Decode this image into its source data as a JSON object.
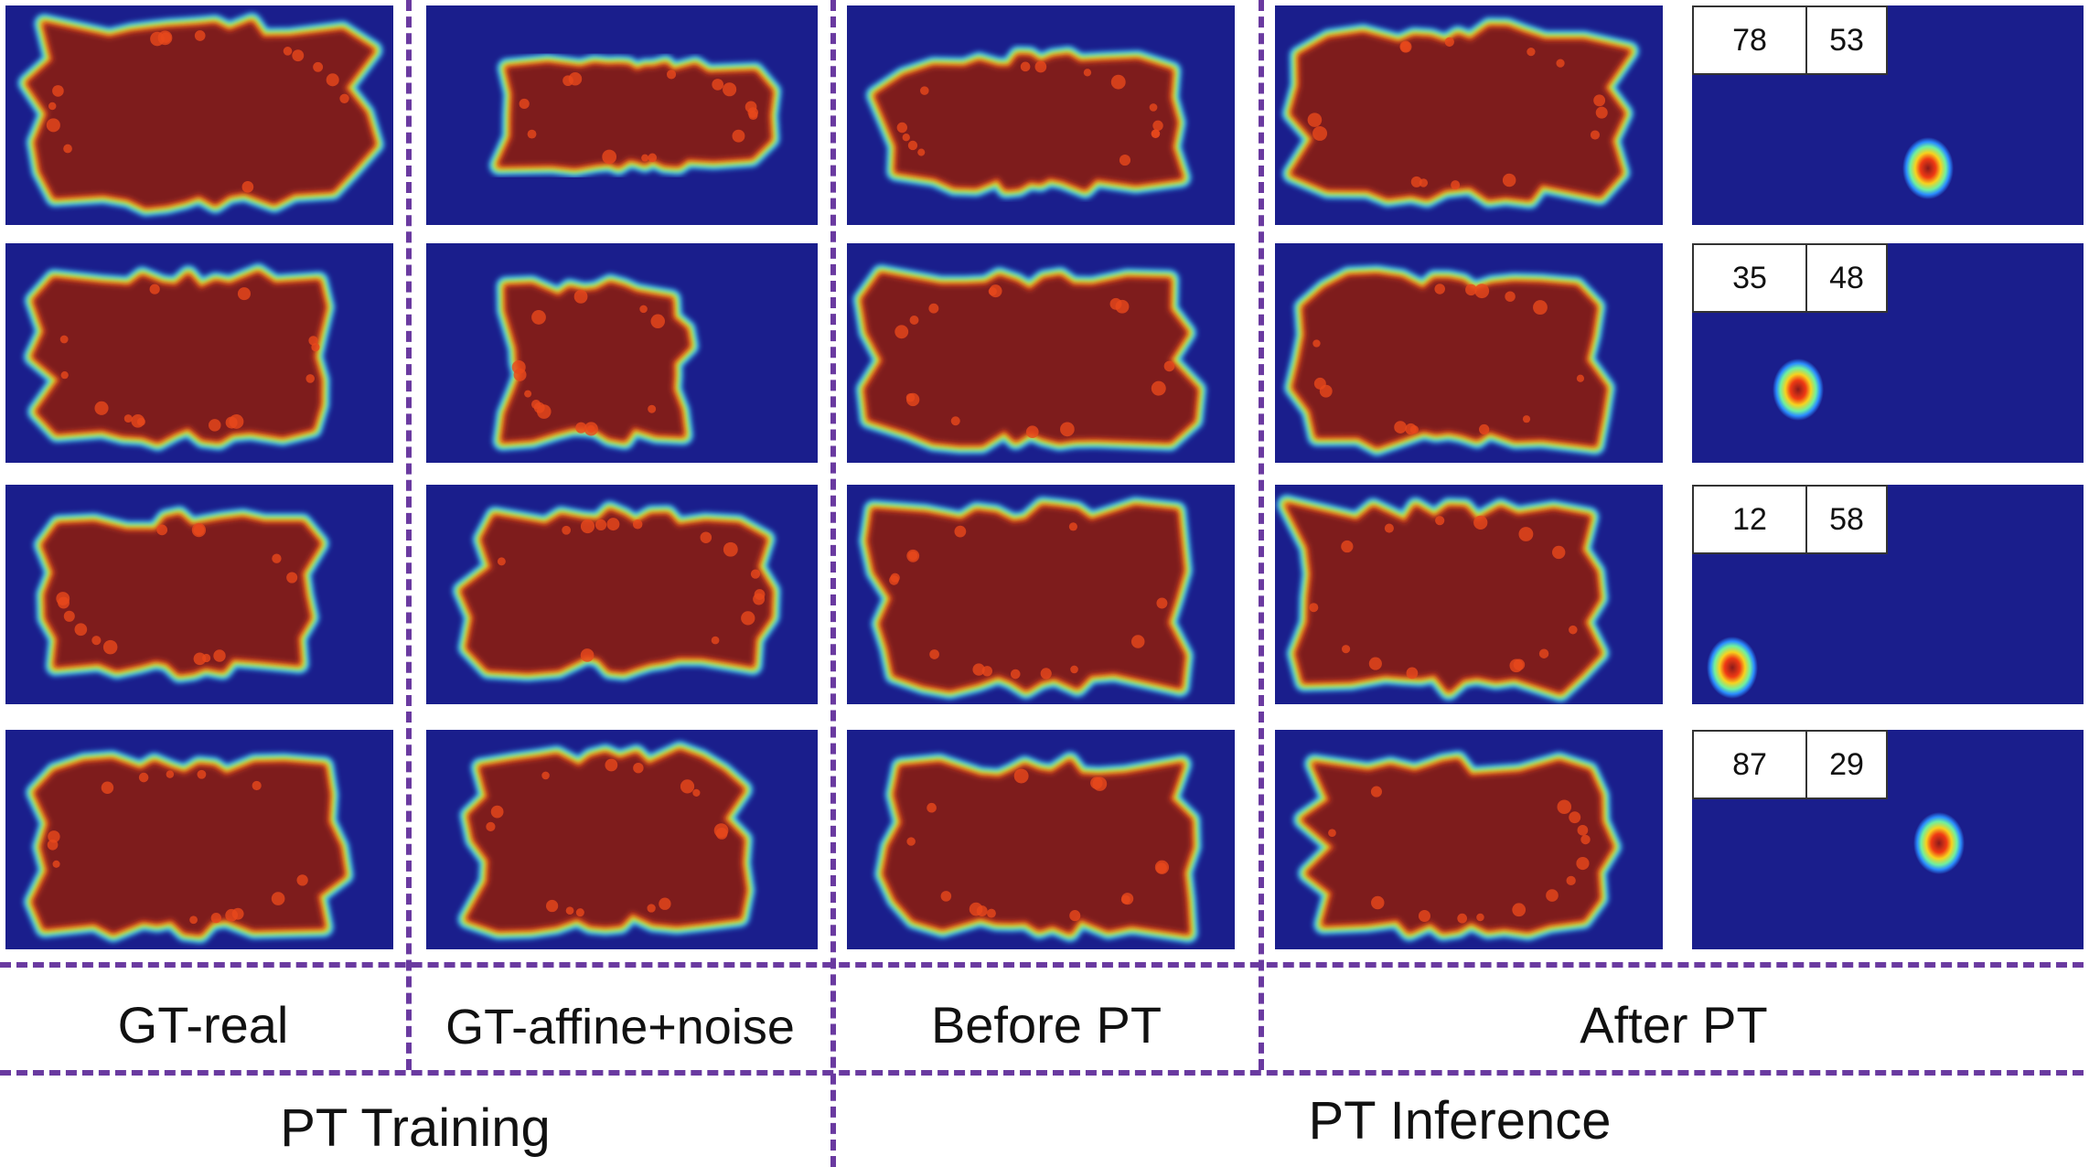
{
  "colors": {
    "background": "#1a1e8c",
    "blob_core": "#7e1e1e",
    "divider": "#6a3aa0"
  },
  "columns": [
    {
      "label": "GT-real"
    },
    {
      "label": "GT-affine+noise"
    },
    {
      "label": "Before PT"
    },
    {
      "label": "After PT"
    }
  ],
  "groups": [
    {
      "label": "PT Training"
    },
    {
      "label": "PT Inference"
    }
  ],
  "coordinate_rows": [
    {
      "a": "78",
      "b": "53"
    },
    {
      "a": "35",
      "b": "48"
    },
    {
      "a": "12",
      "b": "58"
    },
    {
      "a": "87",
      "b": "29"
    }
  ]
}
